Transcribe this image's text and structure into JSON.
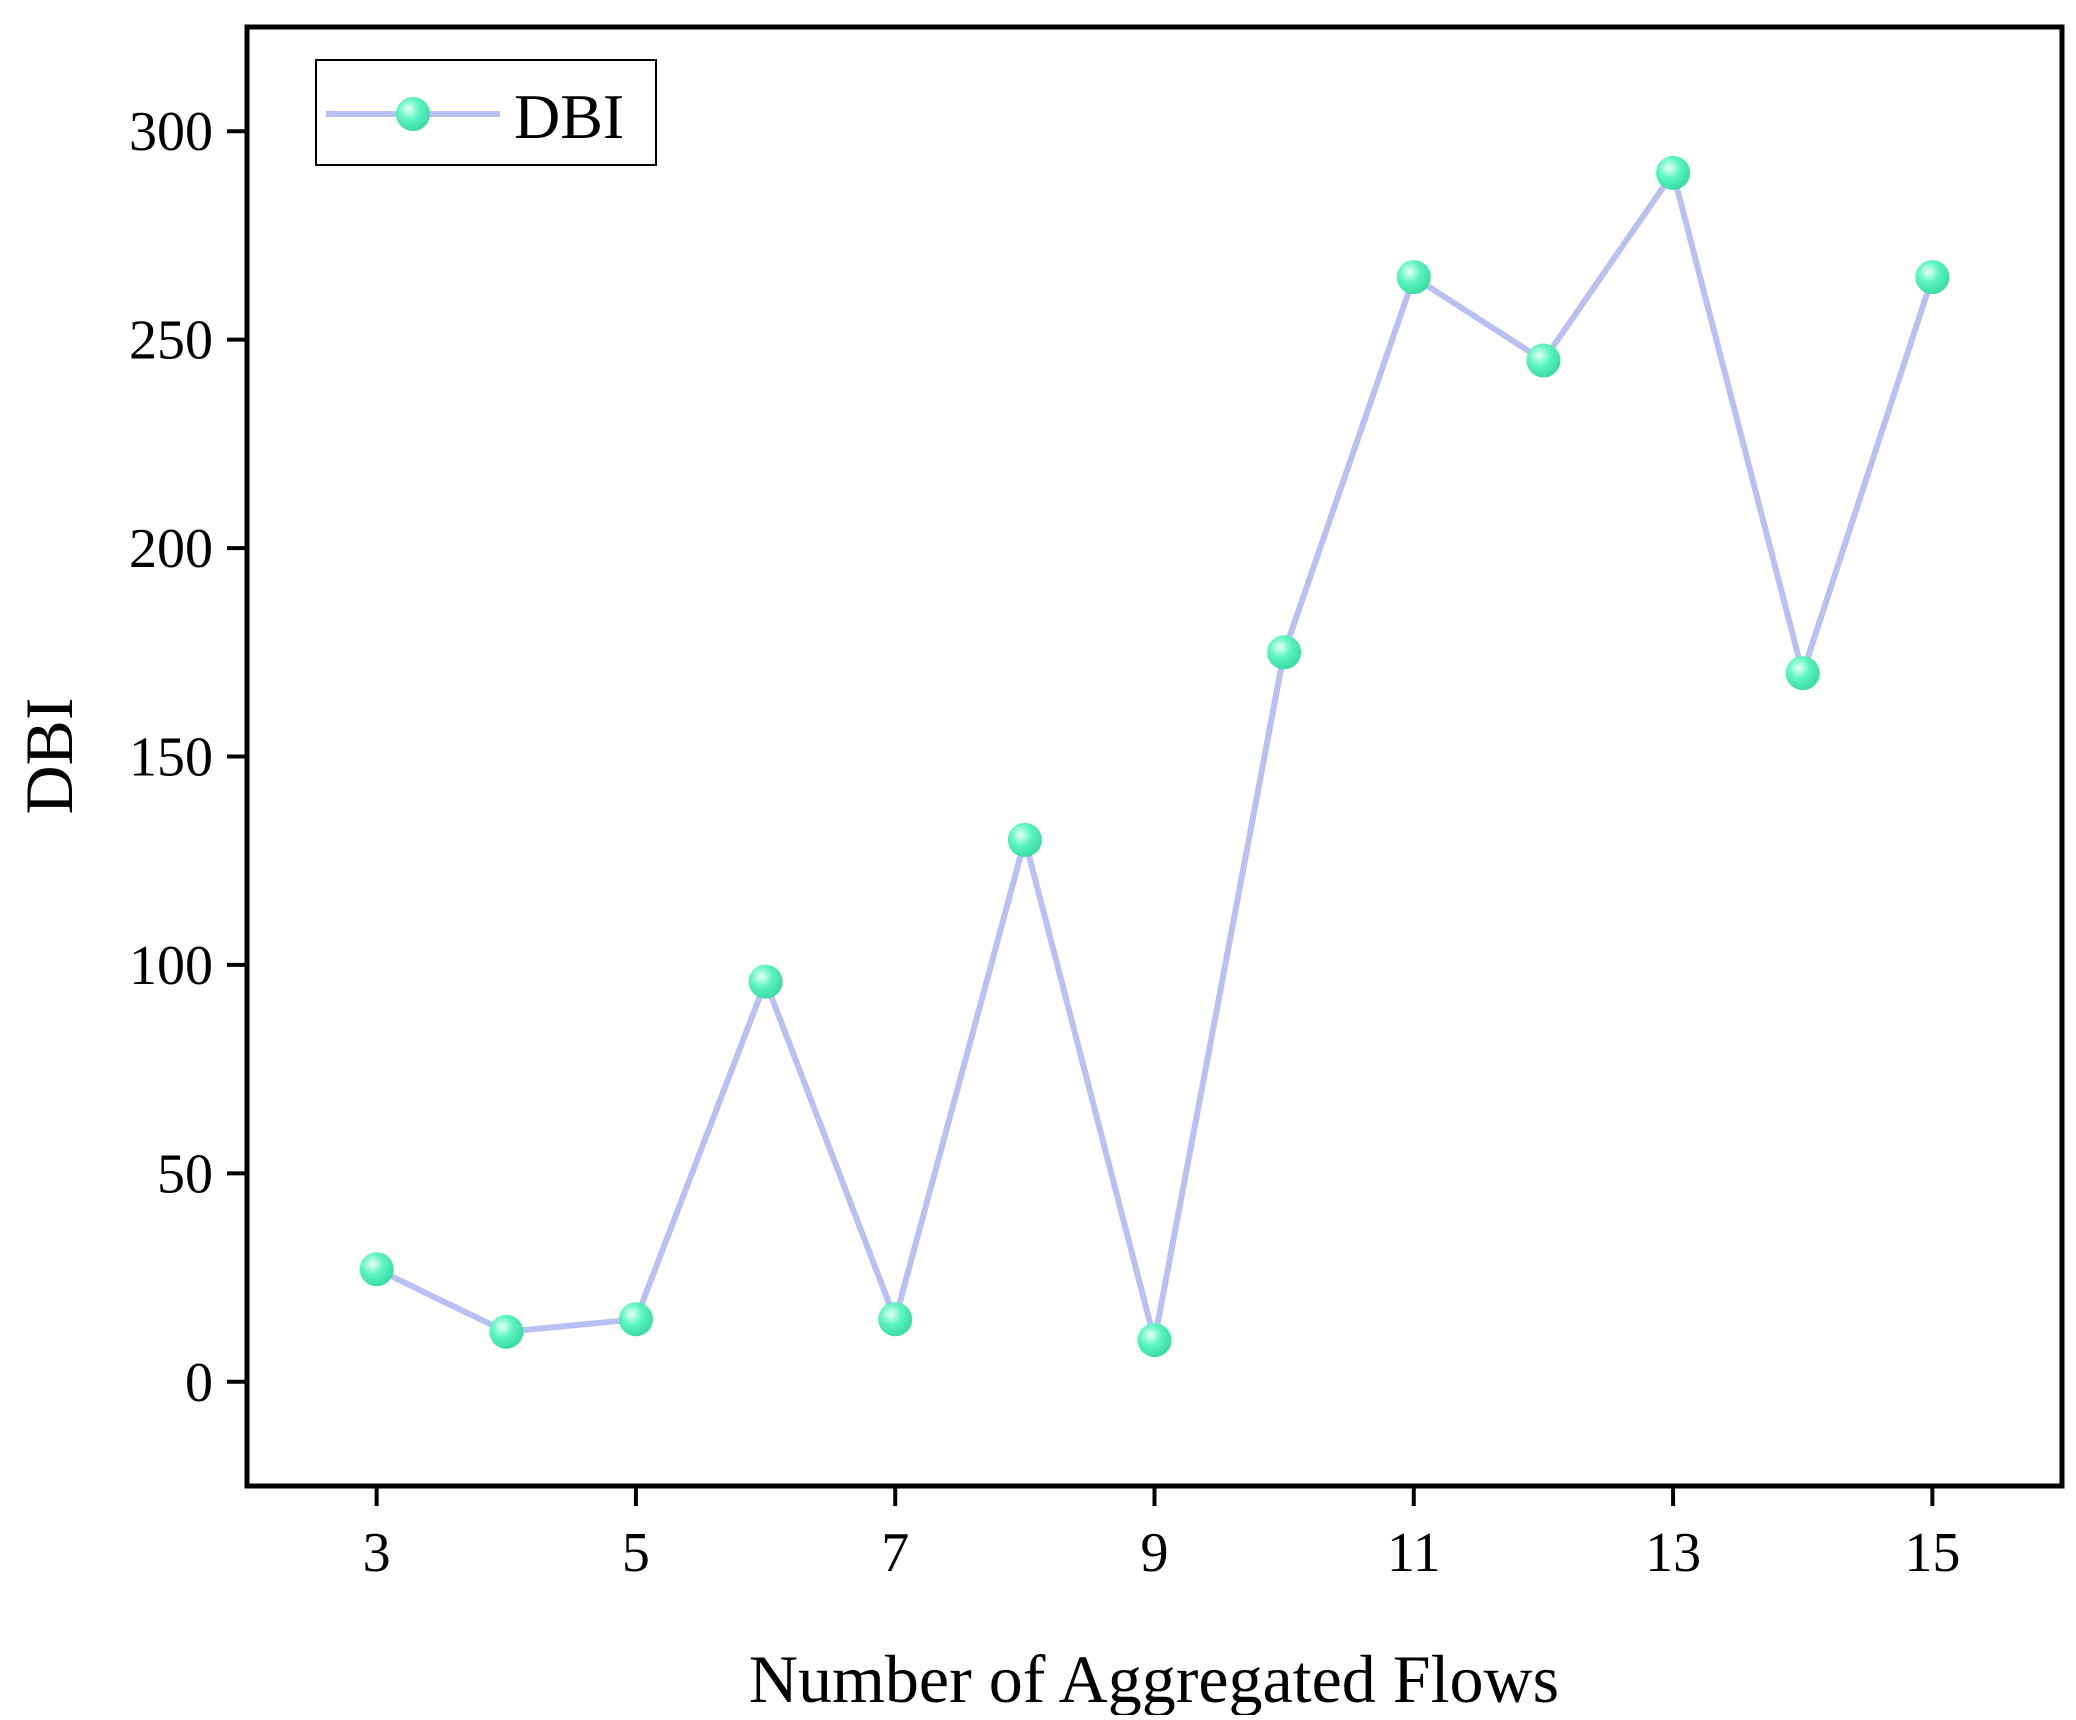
{
  "chart_data": {
    "type": "line",
    "title": "",
    "xlabel": "Number of Aggregated Flows",
    "ylabel": "DBI",
    "x": [
      3,
      4,
      5,
      6,
      7,
      8,
      9,
      10,
      11,
      12,
      13,
      14,
      15
    ],
    "series": [
      {
        "name": "DBI",
        "values": [
          27,
          12,
          15,
          96,
          15,
          130,
          10,
          175,
          265,
          245,
          290,
          170,
          265
        ]
      }
    ],
    "xlim": [
      2,
      16
    ],
    "ylim": [
      -25,
      325
    ],
    "xticks": [
      "3",
      "5",
      "7",
      "9",
      "11",
      "13",
      "15"
    ],
    "yticks": [
      "0",
      "50",
      "100",
      "150",
      "200",
      "250",
      "300"
    ],
    "xtick_values": [
      3,
      5,
      7,
      9,
      11,
      13,
      15
    ],
    "ytick_values": [
      0,
      50,
      100,
      150,
      200,
      250,
      300
    ],
    "grid": false,
    "legend_position": "top-left",
    "colors": {
      "line": "#b8c0f4",
      "marker": "#5cf5c0",
      "marker_highlight": "#e8fff6",
      "axis": "#000000"
    }
  }
}
